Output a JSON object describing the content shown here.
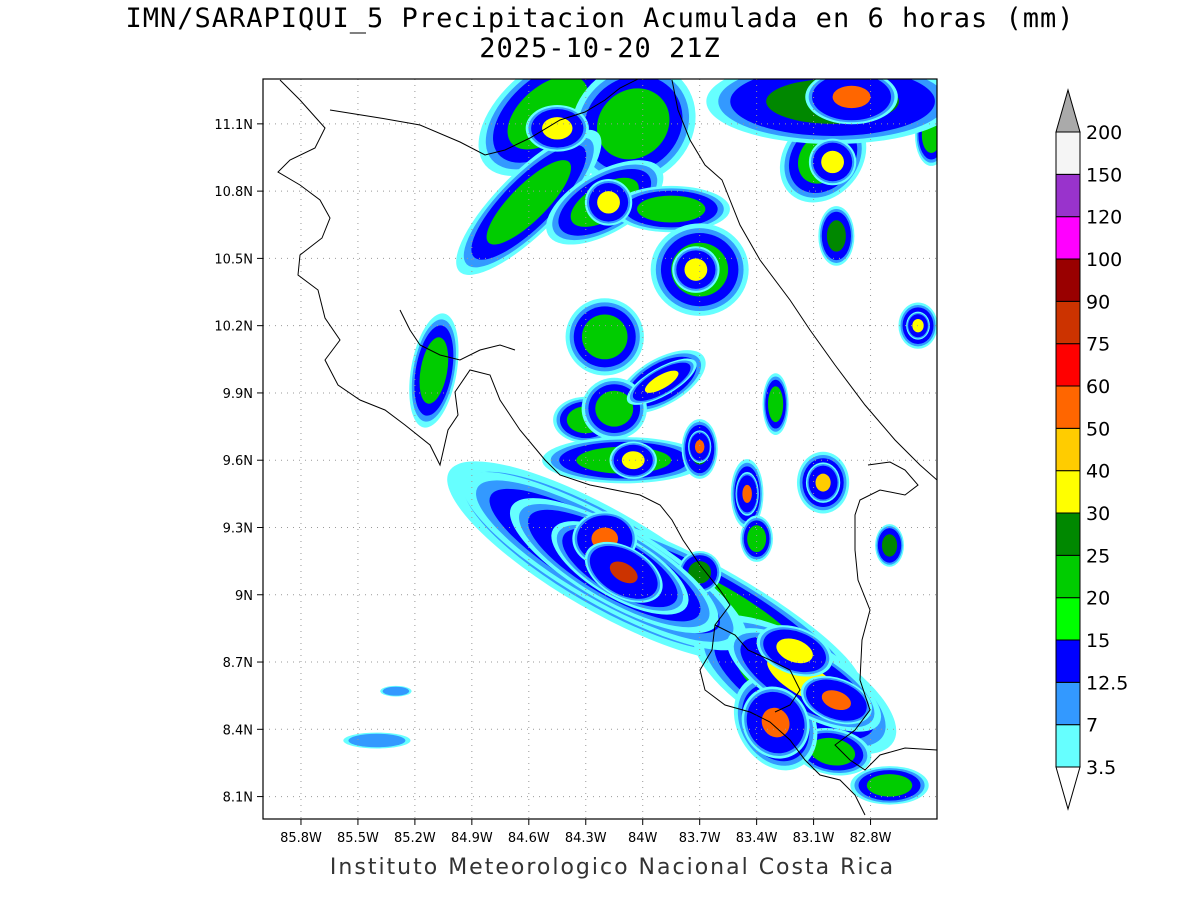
{
  "header": {
    "title": "IMN/SARAPIQUI_5 Precipitacion Acumulada en 6 horas (mm)",
    "subtitle": "2025-10-20 21Z"
  },
  "footer": {
    "credit": "Instituto Meteorologico Nacional Costa Rica"
  },
  "map": {
    "lon_range": [
      -86.0,
      -82.45
    ],
    "lat_range": [
      8.0,
      11.3
    ],
    "lat_ticks": [
      {
        "value": 11.1,
        "label": "11.1N"
      },
      {
        "value": 10.8,
        "label": "10.8N"
      },
      {
        "value": 10.5,
        "label": "10.5N"
      },
      {
        "value": 10.2,
        "label": "10.2N"
      },
      {
        "value": 9.9,
        "label": "9.9N"
      },
      {
        "value": 9.6,
        "label": "9.6N"
      },
      {
        "value": 9.3,
        "label": "9.3N"
      },
      {
        "value": 9.0,
        "label": "9N"
      },
      {
        "value": 8.7,
        "label": "8.7N"
      },
      {
        "value": 8.4,
        "label": "8.4N"
      },
      {
        "value": 8.1,
        "label": "8.1N"
      }
    ],
    "lon_ticks": [
      {
        "value": -85.8,
        "label": "85.8W"
      },
      {
        "value": -85.5,
        "label": "85.5W"
      },
      {
        "value": -85.2,
        "label": "85.2W"
      },
      {
        "value": -84.9,
        "label": "84.9W"
      },
      {
        "value": -84.6,
        "label": "84.6W"
      },
      {
        "value": -84.3,
        "label": "84.3W"
      },
      {
        "value": -84.0,
        "label": "84W"
      },
      {
        "value": -83.7,
        "label": "83.7W"
      },
      {
        "value": -83.4,
        "label": "83.4W"
      },
      {
        "value": -83.1,
        "label": "83.1W"
      },
      {
        "value": -82.8,
        "label": "82.8W"
      }
    ],
    "grid": "dotted",
    "cells": [
      {
        "lon": -84.2,
        "lat": 9.15,
        "rx": 0.55,
        "ry": 0.13,
        "rot": 30,
        "level": 4
      },
      {
        "lon": -84.2,
        "lat": 9.15,
        "rx": 0.45,
        "ry": 0.1,
        "rot": 30,
        "level": 5
      },
      {
        "lon": -84.15,
        "lat": 9.13,
        "rx": 0.3,
        "ry": 0.08,
        "rot": 30,
        "level": 6
      },
      {
        "lon": -84.12,
        "lat": 9.12,
        "rx": 0.18,
        "ry": 0.06,
        "rot": 30,
        "level": 7
      },
      {
        "lon": -84.1,
        "lat": 9.1,
        "rx": 0.08,
        "ry": 0.04,
        "rot": 30,
        "level": 10
      },
      {
        "lon": -84.2,
        "lat": 9.25,
        "rx": 0.07,
        "ry": 0.05,
        "rot": 0,
        "level": 8
      },
      {
        "lon": -83.6,
        "lat": 8.95,
        "rx": 0.5,
        "ry": 0.09,
        "rot": 30,
        "level": 4
      },
      {
        "lon": -83.2,
        "lat": 8.6,
        "rx": 0.35,
        "ry": 0.12,
        "rot": 30,
        "level": 4
      },
      {
        "lon": -83.15,
        "lat": 8.62,
        "rx": 0.22,
        "ry": 0.07,
        "rot": 30,
        "level": 6
      },
      {
        "lon": -82.98,
        "lat": 8.53,
        "rx": 0.08,
        "ry": 0.04,
        "rot": 20,
        "level": 8
      },
      {
        "lon": -83.3,
        "lat": 8.43,
        "rx": 0.08,
        "ry": 0.06,
        "rot": 60,
        "level": 8
      },
      {
        "lon": -83.3,
        "lat": 8.43,
        "rx": 0.14,
        "ry": 0.09,
        "rot": 60,
        "level": 5
      },
      {
        "lon": -83.2,
        "lat": 8.75,
        "rx": 0.1,
        "ry": 0.05,
        "rot": 20,
        "level": 6
      },
      {
        "lon": -83.0,
        "lat": 8.3,
        "rx": 0.12,
        "ry": 0.06,
        "rot": 10,
        "level": 4
      },
      {
        "lon": -82.7,
        "lat": 8.15,
        "rx": 0.12,
        "ry": 0.05,
        "rot": 0,
        "level": 4
      },
      {
        "lon": -84.5,
        "lat": 11.15,
        "rx": 0.25,
        "ry": 0.12,
        "rot": -40,
        "level": 4
      },
      {
        "lon": -84.45,
        "lat": 11.08,
        "rx": 0.08,
        "ry": 0.05,
        "rot": 0,
        "level": 6
      },
      {
        "lon": -84.05,
        "lat": 11.1,
        "rx": 0.2,
        "ry": 0.15,
        "rot": -40,
        "level": 4
      },
      {
        "lon": -83.0,
        "lat": 11.2,
        "rx": 0.35,
        "ry": 0.1,
        "rot": 0,
        "level": 5
      },
      {
        "lon": -82.9,
        "lat": 11.22,
        "rx": 0.1,
        "ry": 0.05,
        "rot": 0,
        "level": 8
      },
      {
        "lon": -83.05,
        "lat": 10.95,
        "rx": 0.15,
        "ry": 0.1,
        "rot": -50,
        "level": 4
      },
      {
        "lon": -83.0,
        "lat": 10.93,
        "rx": 0.06,
        "ry": 0.05,
        "rot": 0,
        "level": 6
      },
      {
        "lon": -84.6,
        "lat": 10.75,
        "rx": 0.3,
        "ry": 0.08,
        "rot": -45,
        "level": 4
      },
      {
        "lon": -84.2,
        "lat": 10.75,
        "rx": 0.2,
        "ry": 0.08,
        "rot": -30,
        "level": 4
      },
      {
        "lon": -84.18,
        "lat": 10.75,
        "rx": 0.06,
        "ry": 0.05,
        "rot": 0,
        "level": 6
      },
      {
        "lon": -83.85,
        "lat": 10.72,
        "rx": 0.18,
        "ry": 0.06,
        "rot": 0,
        "level": 4
      },
      {
        "lon": -83.7,
        "lat": 10.45,
        "rx": 0.15,
        "ry": 0.12,
        "rot": 0,
        "level": 4
      },
      {
        "lon": -83.72,
        "lat": 10.45,
        "rx": 0.06,
        "ry": 0.05,
        "rot": 0,
        "level": 6
      },
      {
        "lon": -82.98,
        "lat": 10.6,
        "rx": 0.05,
        "ry": 0.07,
        "rot": 0,
        "level": 5
      },
      {
        "lon": -85.1,
        "lat": 10.0,
        "rx": 0.07,
        "ry": 0.15,
        "rot": 10,
        "level": 4
      },
      {
        "lon": -84.2,
        "lat": 10.15,
        "rx": 0.12,
        "ry": 0.1,
        "rot": 0,
        "level": 4
      },
      {
        "lon": -83.9,
        "lat": 9.95,
        "rx": 0.15,
        "ry": 0.06,
        "rot": -30,
        "level": 4
      },
      {
        "lon": -83.9,
        "lat": 9.95,
        "rx": 0.1,
        "ry": 0.03,
        "rot": -30,
        "level": 6
      },
      {
        "lon": -84.3,
        "lat": 9.78,
        "rx": 0.1,
        "ry": 0.06,
        "rot": 0,
        "level": 4
      },
      {
        "lon": -84.15,
        "lat": 9.83,
        "rx": 0.1,
        "ry": 0.08,
        "rot": 0,
        "level": 4
      },
      {
        "lon": -84.1,
        "lat": 9.6,
        "rx": 0.25,
        "ry": 0.06,
        "rot": 0,
        "level": 4
      },
      {
        "lon": -84.05,
        "lat": 9.6,
        "rx": 0.06,
        "ry": 0.04,
        "rot": 0,
        "level": 6
      },
      {
        "lon": -83.7,
        "lat": 9.65,
        "rx": 0.05,
        "ry": 0.07,
        "rot": 0,
        "level": 5
      },
      {
        "lon": -83.7,
        "lat": 9.66,
        "rx": 0.025,
        "ry": 0.03,
        "rot": 0,
        "level": 8
      },
      {
        "lon": -83.45,
        "lat": 9.45,
        "rx": 0.05,
        "ry": 0.09,
        "rot": 0,
        "level": 4
      },
      {
        "lon": -83.45,
        "lat": 9.45,
        "rx": 0.025,
        "ry": 0.04,
        "rot": 0,
        "level": 8
      },
      {
        "lon": -83.05,
        "lat": 9.5,
        "rx": 0.08,
        "ry": 0.08,
        "rot": 0,
        "level": 4
      },
      {
        "lon": -83.05,
        "lat": 9.5,
        "rx": 0.04,
        "ry": 0.04,
        "rot": 0,
        "level": 7
      },
      {
        "lon": -82.55,
        "lat": 10.2,
        "rx": 0.06,
        "ry": 0.06,
        "rot": 0,
        "level": 4
      },
      {
        "lon": -82.55,
        "lat": 10.2,
        "rx": 0.03,
        "ry": 0.03,
        "rot": 0,
        "level": 6
      },
      {
        "lon": -82.7,
        "lat": 9.22,
        "rx": 0.04,
        "ry": 0.05,
        "rot": 0,
        "level": 5
      },
      {
        "lon": -82.48,
        "lat": 11.05,
        "rx": 0.05,
        "ry": 0.08,
        "rot": 0,
        "level": 4
      },
      {
        "lon": -85.4,
        "lat": 8.35,
        "rx": 0.15,
        "ry": 0.03,
        "rot": 0,
        "level": 1
      },
      {
        "lon": -85.3,
        "lat": 8.57,
        "rx": 0.07,
        "ry": 0.02,
        "rot": 0,
        "level": 1
      },
      {
        "lon": -83.3,
        "lat": 9.85,
        "rx": 0.04,
        "ry": 0.08,
        "rot": 0,
        "level": 4
      },
      {
        "lon": -83.4,
        "lat": 9.25,
        "rx": 0.05,
        "ry": 0.06,
        "rot": 0,
        "level": 4
      },
      {
        "lon": -83.7,
        "lat": 9.1,
        "rx": 0.06,
        "ry": 0.05,
        "rot": 0,
        "level": 5
      }
    ]
  },
  "colorbar": {
    "colors": [
      "#66ffff",
      "#3399ff",
      "#0000ff",
      "#00ff00",
      "#00cc00",
      "#008800",
      "#ffff00",
      "#ffcc00",
      "#ff6600",
      "#ff0000",
      "#cc3300",
      "#990000",
      "#ff00ff",
      "#9933cc",
      "#f5f5f5"
    ],
    "over_color": "#aaaaaa",
    "labels": [
      "3.5",
      "7",
      "12.5",
      "15",
      "20",
      "25",
      "30",
      "40",
      "50",
      "60",
      "75",
      "90",
      "100",
      "120",
      "150",
      "200"
    ]
  }
}
